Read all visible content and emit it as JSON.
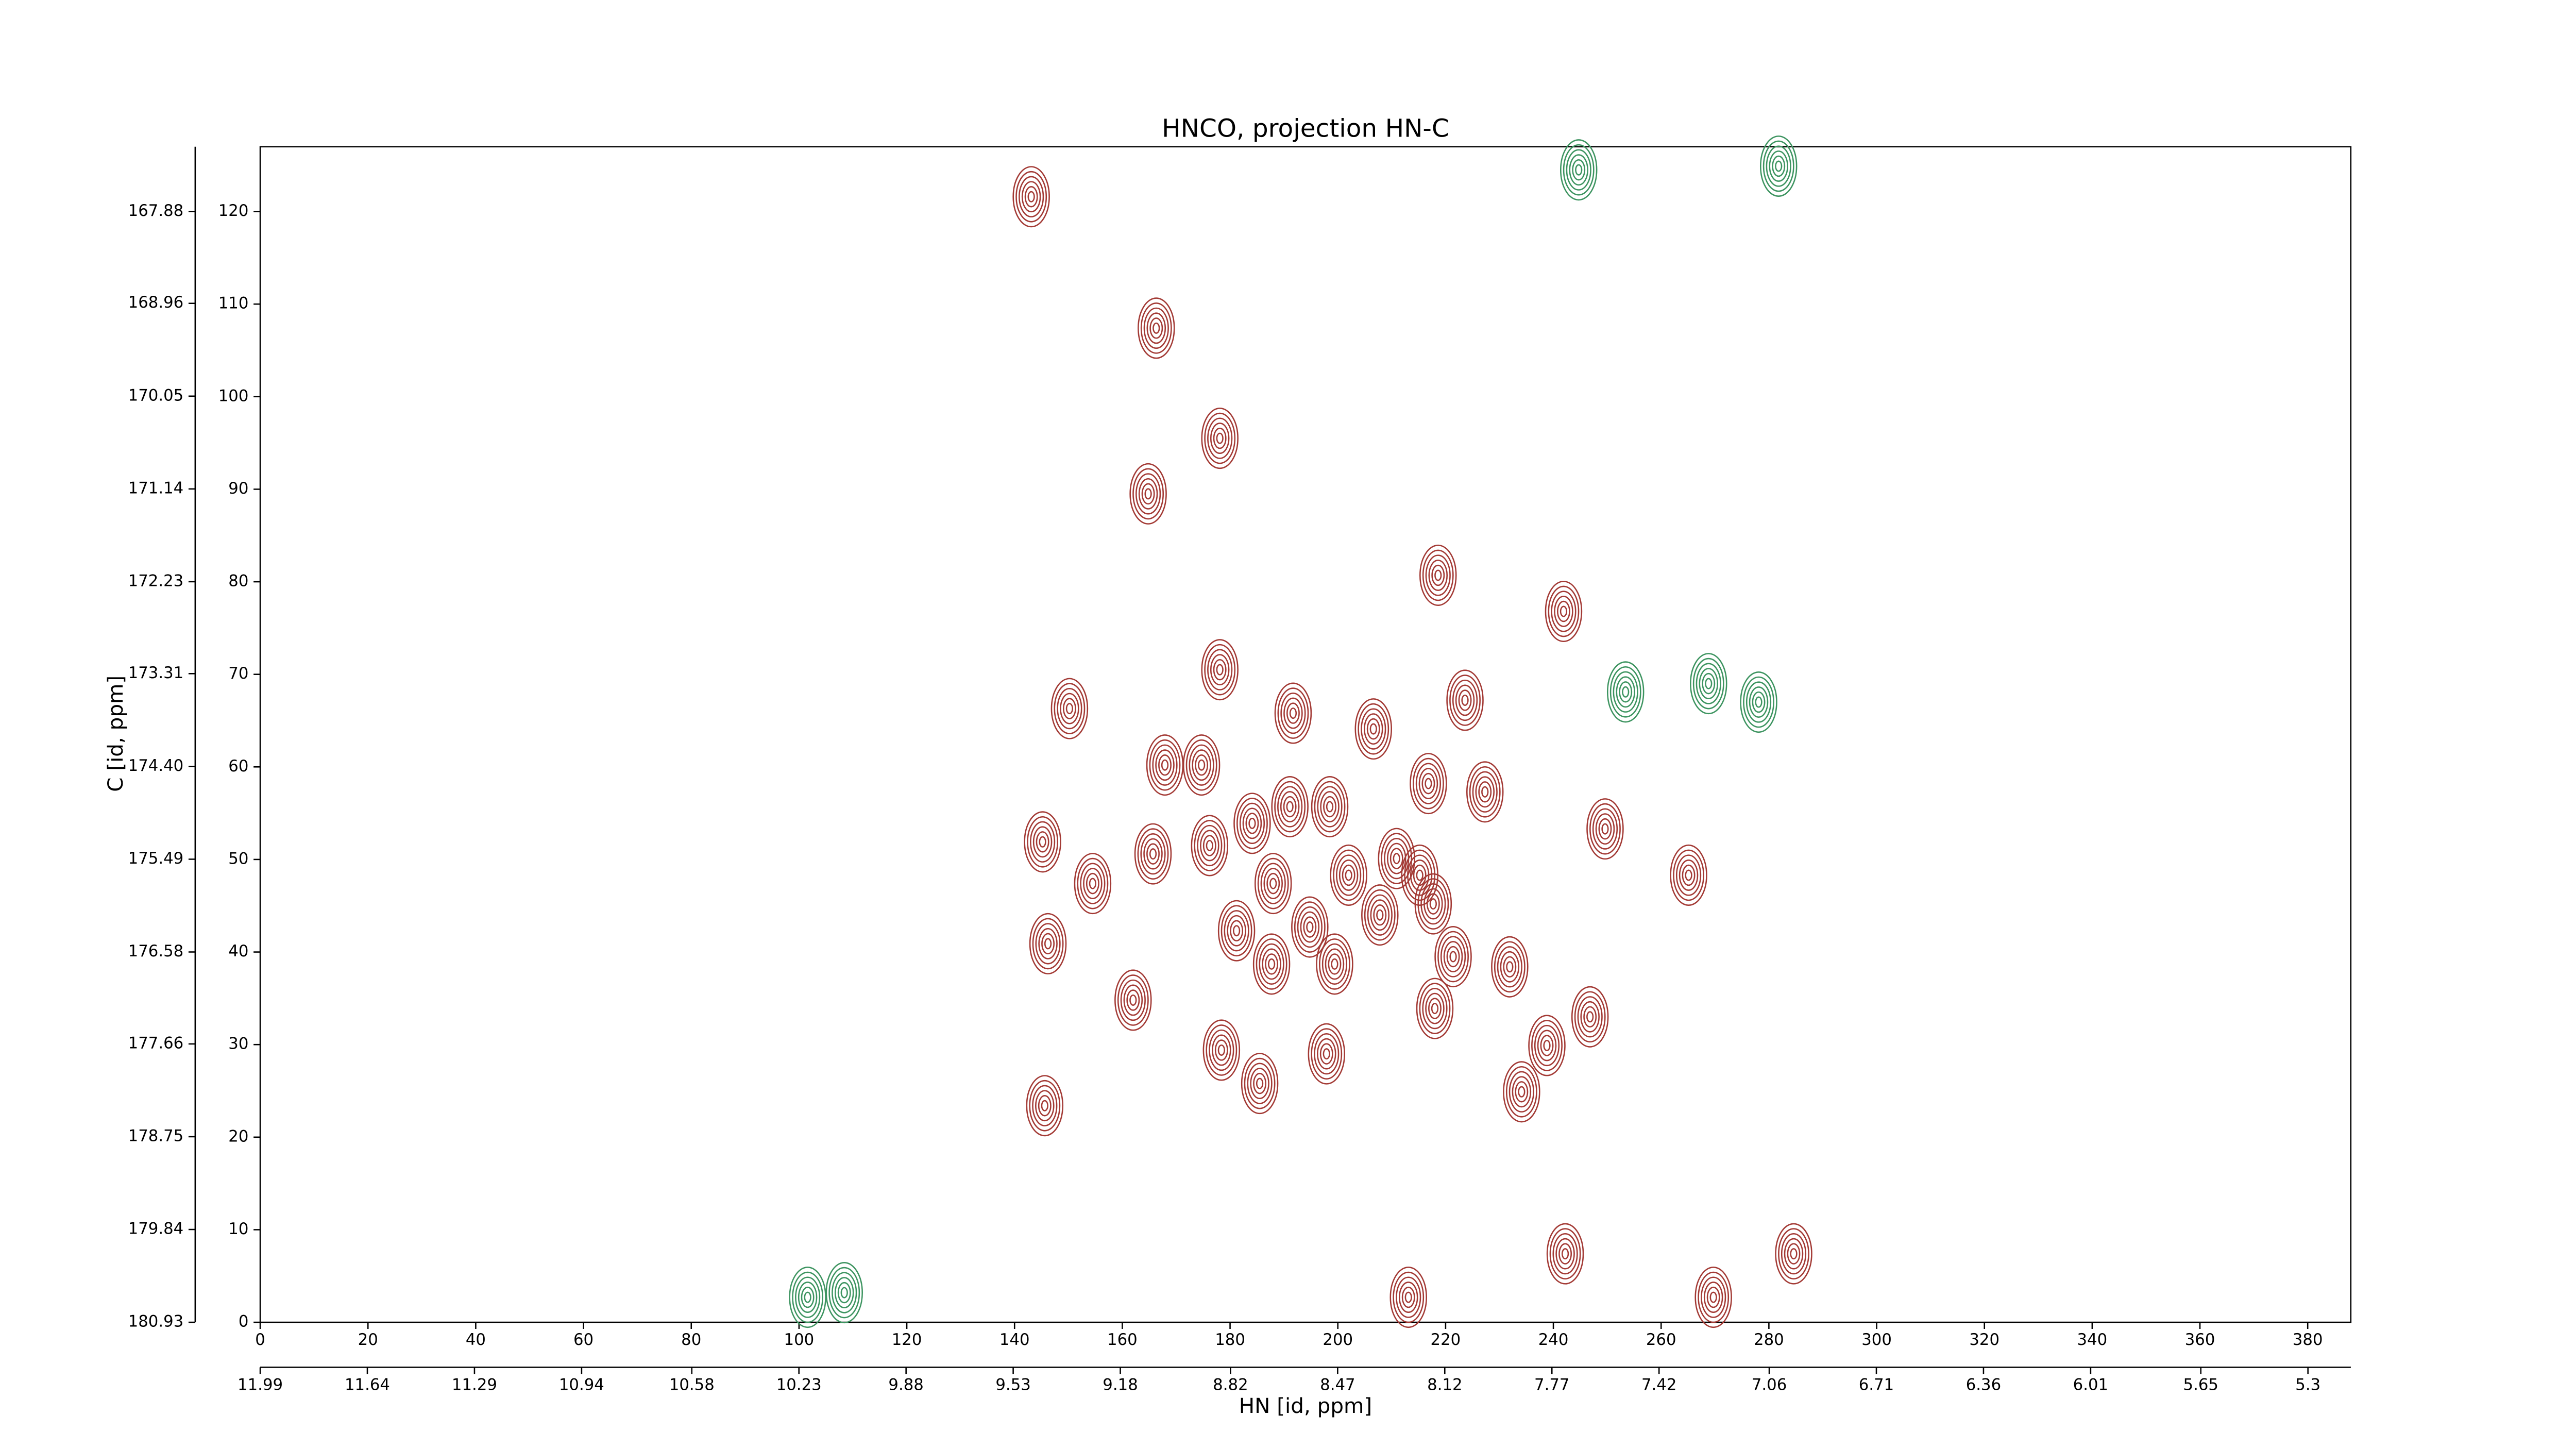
{
  "chart_data": {
    "type": "contour",
    "title": "HNCO, projection HN-C",
    "xlabel": "HN [id, ppm]",
    "ylabel": "C [id, ppm]",
    "xlim": [
      0,
      388
    ],
    "xticks": [
      0,
      20,
      40,
      60,
      80,
      100,
      120,
      140,
      160,
      180,
      200,
      220,
      240,
      260,
      280,
      300,
      320,
      340,
      360,
      380
    ],
    "x2lim": [
      11.99,
      5.16
    ],
    "x2ticks": [
      11.99,
      11.64,
      11.29,
      10.94,
      10.58,
      10.23,
      9.88,
      9.53,
      9.18,
      8.82,
      8.47,
      8.12,
      7.77,
      7.42,
      7.06,
      6.71,
      6.36,
      6.01,
      5.65,
      5.3
    ],
    "ylim": [
      0,
      127
    ],
    "yticks": [
      0,
      10,
      20,
      30,
      40,
      50,
      60,
      70,
      80,
      90,
      100,
      110,
      120
    ],
    "y2lim": [
      180.93,
      167.12
    ],
    "y2ticks": [
      180.93,
      179.84,
      178.75,
      177.66,
      176.58,
      175.49,
      {
        "value": 174.4,
        "label": "174.40"
      },
      173.31,
      172.23,
      171.14,
      170.05,
      168.96,
      167.88
    ],
    "series": [
      {
        "color": "#a33a35",
        "x": [
          166.3,
          178.1,
          164.8,
          218.6,
          241.9,
          178.1,
          150.2,
          191.7,
          206.6,
          223.6,
          167.9,
          174.7,
          216.8,
          227.3,
          191.1,
          198.5,
          184.1,
          145.2,
          165.7,
          176.2,
          210.9,
          249.6,
          265.1,
          202.0,
          154.5,
          188.0,
          215.2,
          217.7,
          146.2,
          181.2,
          194.8,
          207.8,
          187.7,
          199.4,
          221.4,
          231.9,
          162.0,
          218.0,
          246.8,
          238.8,
          178.4,
          197.9,
          185.5,
          234.1,
          145.6,
          242.2,
          284.6,
          213.1,
          269.7,
          143.1
        ],
        "y": [
          107.4,
          95.5,
          89.5,
          80.7,
          76.8,
          70.5,
          66.3,
          65.8,
          64.1,
          67.2,
          60.2,
          60.2,
          58.2,
          57.3,
          55.7,
          55.7,
          53.9,
          51.9,
          50.6,
          51.5,
          50.1,
          53.3,
          48.3,
          48.3,
          47.4,
          47.4,
          48.3,
          45.2,
          40.9,
          42.3,
          42.7,
          44.0,
          38.7,
          38.7,
          39.5,
          38.4,
          34.8,
          33.9,
          33.0,
          29.9,
          29.4,
          29.0,
          25.8,
          24.9,
          23.4,
          7.4,
          7.4,
          2.7,
          2.7,
          121.6
        ]
      },
      {
        "color": "#3d9460",
        "x": [
          244.7,
          281.8,
          253.4,
          268.8,
          278.1,
          101.6,
          108.4
        ],
        "y": [
          124.5,
          124.9,
          68.1,
          69.0,
          67.0,
          2.7,
          3.2
        ]
      }
    ]
  }
}
